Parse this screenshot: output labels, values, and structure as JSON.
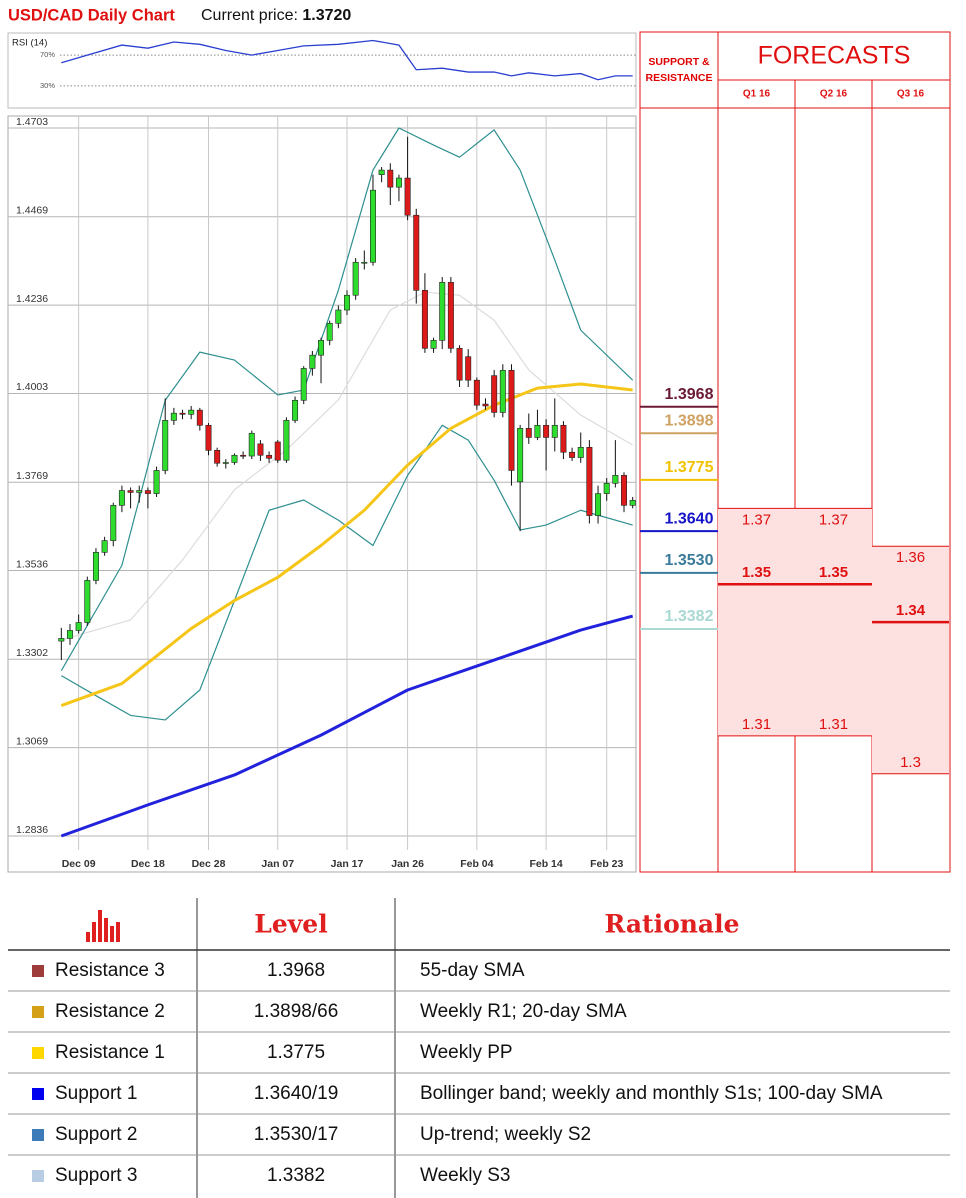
{
  "header": {
    "title": "USD/CAD Daily Chart",
    "price_label": "Current price:",
    "price": "1.3720"
  },
  "chart_data": [
    {
      "type": "candlestick",
      "up_color": "#2edc2e",
      "down_color": "#dd1a1a",
      "grid": true,
      "xlim": [
        -0.5,
        66.5
      ],
      "xticks": [
        {
          "value": 2,
          "label": "Dec 09"
        },
        {
          "value": 10,
          "label": "Dec 18"
        },
        {
          "value": 17,
          "label": "Dec 28"
        },
        {
          "value": 25,
          "label": "Jan 07"
        },
        {
          "value": 33,
          "label": "Jan 17"
        },
        {
          "value": 40,
          "label": "Jan 26"
        },
        {
          "value": 48,
          "label": "Feb 04"
        },
        {
          "value": 56,
          "label": "Feb 14"
        },
        {
          "value": 63,
          "label": "Feb 23"
        }
      ],
      "ylim": [
        1.2836,
        1.4703
      ],
      "yticks": [
        1.4703,
        1.4469,
        1.4236,
        1.4003,
        1.3769,
        1.3536,
        1.3302,
        1.3069,
        1.2836
      ],
      "ohlc": [
        [
          1.335,
          1.3385,
          1.33,
          1.3357
        ],
        [
          1.3357,
          1.3395,
          1.334,
          1.3378
        ],
        [
          1.3378,
          1.342,
          1.337,
          1.3399
        ],
        [
          1.3399,
          1.352,
          1.339,
          1.351
        ],
        [
          1.351,
          1.3595,
          1.35,
          1.3584
        ],
        [
          1.3584,
          1.3625,
          1.3575,
          1.3615
        ],
        [
          1.3615,
          1.3715,
          1.36,
          1.3708
        ],
        [
          1.3708,
          1.376,
          1.369,
          1.3747
        ],
        [
          1.3747,
          1.3755,
          1.37,
          1.3742
        ],
        [
          1.3742,
          1.376,
          1.3715,
          1.3747
        ],
        [
          1.3747,
          1.3755,
          1.37,
          1.3739
        ],
        [
          1.3739,
          1.381,
          1.373,
          1.38
        ],
        [
          1.38,
          1.399,
          1.379,
          1.3932
        ],
        [
          1.3932,
          1.3965,
          1.392,
          1.3951
        ],
        [
          1.3951,
          1.396,
          1.3935,
          1.3948
        ],
        [
          1.3948,
          1.397,
          1.3935,
          1.3959
        ],
        [
          1.3959,
          1.3965,
          1.3905,
          1.3919
        ],
        [
          1.3919,
          1.3925,
          1.384,
          1.3853
        ],
        [
          1.3853,
          1.386,
          1.381,
          1.3819
        ],
        [
          1.3819,
          1.383,
          1.3805,
          1.3821
        ],
        [
          1.3821,
          1.3845,
          1.3815,
          1.384
        ],
        [
          1.384,
          1.385,
          1.383,
          1.3838
        ],
        [
          1.3838,
          1.3905,
          1.383,
          1.3898
        ],
        [
          1.387,
          1.388,
          1.3825,
          1.384
        ],
        [
          1.384,
          1.385,
          1.382,
          1.3832
        ],
        [
          1.3875,
          1.388,
          1.382,
          1.3827
        ],
        [
          1.3827,
          1.394,
          1.382,
          1.3932
        ],
        [
          1.3932,
          1.3995,
          1.3925,
          1.3985
        ],
        [
          1.3985,
          1.4075,
          1.3975,
          1.4069
        ],
        [
          1.4069,
          1.4115,
          1.405,
          1.4104
        ],
        [
          1.4104,
          1.415,
          1.403,
          1.4143
        ],
        [
          1.4143,
          1.4195,
          1.413,
          1.4188
        ],
        [
          1.4188,
          1.4235,
          1.4175,
          1.4223
        ],
        [
          1.4223,
          1.4275,
          1.421,
          1.4262
        ],
        [
          1.4262,
          1.436,
          1.425,
          1.4349
        ],
        [
          1.4349,
          1.438,
          1.433,
          1.4349
        ],
        [
          1.4349,
          1.458,
          1.434,
          1.4539
        ],
        [
          1.458,
          1.46,
          1.456,
          1.4592
        ],
        [
          1.4592,
          1.461,
          1.45,
          1.4547
        ],
        [
          1.4547,
          1.458,
          1.451,
          1.4571
        ],
        [
          1.4571,
          1.468,
          1.446,
          1.4473
        ],
        [
          1.4473,
          1.449,
          1.424,
          1.4275
        ],
        [
          1.4275,
          1.432,
          1.411,
          1.4122
        ],
        [
          1.4122,
          1.415,
          1.411,
          1.4143
        ],
        [
          1.4143,
          1.431,
          1.412,
          1.4296
        ],
        [
          1.4296,
          1.431,
          1.411,
          1.4122
        ],
        [
          1.4122,
          1.413,
          1.402,
          1.4038
        ],
        [
          1.41,
          1.412,
          1.402,
          1.4038
        ],
        [
          1.4038,
          1.4045,
          1.396,
          1.3972
        ],
        [
          1.3975,
          1.399,
          1.396,
          1.397
        ],
        [
          1.405,
          1.4065,
          1.394,
          1.3953
        ],
        [
          1.3953,
          1.408,
          1.394,
          1.4064
        ],
        [
          1.4064,
          1.408,
          1.376,
          1.38
        ],
        [
          1.377,
          1.392,
          1.364,
          1.3911
        ],
        [
          1.3911,
          1.395,
          1.387,
          1.3887
        ],
        [
          1.3887,
          1.396,
          1.388,
          1.3919
        ],
        [
          1.3919,
          1.3935,
          1.38,
          1.3887
        ],
        [
          1.3887,
          1.399,
          1.385,
          1.3919
        ],
        [
          1.3919,
          1.393,
          1.383,
          1.3848
        ],
        [
          1.3848,
          1.386,
          1.3825,
          1.3834
        ],
        [
          1.3834,
          1.39,
          1.382,
          1.3861
        ],
        [
          1.3861,
          1.388,
          1.366,
          1.3681
        ],
        [
          1.3681,
          1.376,
          1.366,
          1.3739
        ],
        [
          1.3739,
          1.378,
          1.372,
          1.3766
        ],
        [
          1.3766,
          1.388,
          1.3755,
          1.3787
        ],
        [
          1.3787,
          1.3795,
          1.369,
          1.3708
        ],
        [
          1.3708,
          1.373,
          1.37,
          1.3721
        ]
      ],
      "overlays": [
        {
          "color": "#dcdcdc",
          "width": 1.2,
          "x": [
            0,
            8,
            14,
            20,
            26,
            32,
            38,
            42,
            46,
            50,
            54,
            60,
            66
          ],
          "values": [
            1.3353,
            1.3406,
            1.3564,
            1.3749,
            1.3854,
            1.3986,
            1.4223,
            1.427,
            1.4262,
            1.4196,
            1.4065,
            1.3946,
            1.3867
          ]
        },
        {
          "color": "#2f8f8f",
          "width": 1.2,
          "x": [
            0,
            7,
            12,
            16,
            20,
            25,
            28,
            32,
            36,
            39,
            43,
            46,
            50,
            53,
            57,
            60,
            66
          ],
          "values": [
            1.3272,
            1.355,
            1.3985,
            1.4112,
            1.4091,
            1.3999,
            1.4012,
            1.4275,
            1.4592,
            1.4703,
            1.4658,
            1.4626,
            1.4698,
            1.4592,
            1.4355,
            1.417,
            1.4038
          ]
        },
        {
          "color": "#2f8f8f",
          "width": 1.2,
          "x": [
            0,
            4,
            8,
            12,
            16,
            20,
            24,
            28,
            32,
            36,
            40,
            44,
            47,
            50,
            53,
            56,
            60,
            66
          ],
          "values": [
            1.3259,
            1.3206,
            1.3154,
            1.3142,
            1.3221,
            1.3457,
            1.3695,
            1.3722,
            1.3669,
            1.3602,
            1.3787,
            1.3919,
            1.388,
            1.3774,
            1.3643,
            1.3656,
            1.3695,
            1.3656
          ]
        },
        {
          "color": "#f5c518",
          "width": 3,
          "x": [
            0,
            7,
            15,
            20,
            25,
            30,
            35,
            40,
            45,
            50,
            55,
            60,
            66
          ],
          "values": [
            1.318,
            1.3238,
            1.3383,
            1.3457,
            1.3518,
            1.3602,
            1.3695,
            1.3814,
            1.3911,
            1.3972,
            1.4017,
            1.4028,
            1.4012
          ]
        },
        {
          "color": "#2222dd",
          "width": 3,
          "x": [
            0,
            10,
            20,
            30,
            40,
            50,
            60,
            66
          ],
          "values": [
            1.2836,
            1.2918,
            1.2997,
            1.3102,
            1.3221,
            1.33,
            1.3379,
            1.3416
          ]
        }
      ]
    },
    {
      "type": "line",
      "title": "RSI (14)",
      "color": "#2a3fd0",
      "xlim": [
        -0.5,
        66.5
      ],
      "ylim": [
        0,
        100
      ],
      "yticks": [
        {
          "value": 70,
          "label": "70%"
        },
        {
          "value": 30,
          "label": "30%"
        }
      ],
      "x": [
        0,
        3,
        7,
        10,
        13,
        16,
        19,
        22,
        25,
        28,
        32,
        36,
        39,
        41,
        44,
        47,
        50,
        52,
        54,
        57,
        60,
        62,
        64,
        66
      ],
      "values": [
        60,
        70,
        83,
        79,
        87,
        84,
        76,
        70,
        76,
        82,
        84,
        89,
        83,
        51,
        53,
        48,
        48,
        43,
        47,
        43,
        46,
        38,
        43,
        43
      ]
    }
  ],
  "support_resistance": {
    "title": "SUPPORT & RESISTANCE",
    "levels": [
      {
        "value": 1.3968,
        "label": "1.3968",
        "color": "#6b1a35"
      },
      {
        "value": 1.3898,
        "label": "1.3898",
        "color": "#cfa262"
      },
      {
        "value": 1.3775,
        "label": "1.3775",
        "color": "#f2c200"
      },
      {
        "value": 1.364,
        "label": "1.3640",
        "color": "#1414c8"
      },
      {
        "value": 1.353,
        "label": "1.3530",
        "color": "#3a7a9a"
      },
      {
        "value": 1.3382,
        "label": "1.3382",
        "color": "#a9d9d2"
      }
    ]
  },
  "forecasts": {
    "title": "FORECASTS",
    "quarters": [
      {
        "name": "Q1 16",
        "high": 1.37,
        "mid": 1.35,
        "low": 1.31
      },
      {
        "name": "Q2 16",
        "high": 1.37,
        "mid": 1.35,
        "low": 1.31
      },
      {
        "name": "Q3 16",
        "high": 1.36,
        "mid": 1.34,
        "low": 1.3
      }
    ]
  },
  "table": {
    "columns": [
      "Level",
      "Rationale"
    ],
    "rows": [
      {
        "name": "Resistance 3",
        "level": "1.3968",
        "rationale": "55-day SMA",
        "color": "#9e3b3b"
      },
      {
        "name": "Resistance 2",
        "level": "1.3898/66",
        "rationale": "Weekly R1; 20-day SMA",
        "color": "#d4a017"
      },
      {
        "name": "Resistance 1",
        "level": "1.3775",
        "rationale": "Weekly PP",
        "color": "#ffd700"
      },
      {
        "name": "Support 1",
        "level": "1.3640/19",
        "rationale": "Bollinger band; weekly and monthly S1s; 100-day SMA",
        "color": "#0000ee"
      },
      {
        "name": "Support 2",
        "level": "1.3530/17",
        "rationale": "Up-trend; weekly S2",
        "color": "#3d7ab8"
      },
      {
        "name": "Support 3",
        "level": "1.3382",
        "rationale": "Weekly S3",
        "color": "#b8cce4"
      }
    ]
  }
}
